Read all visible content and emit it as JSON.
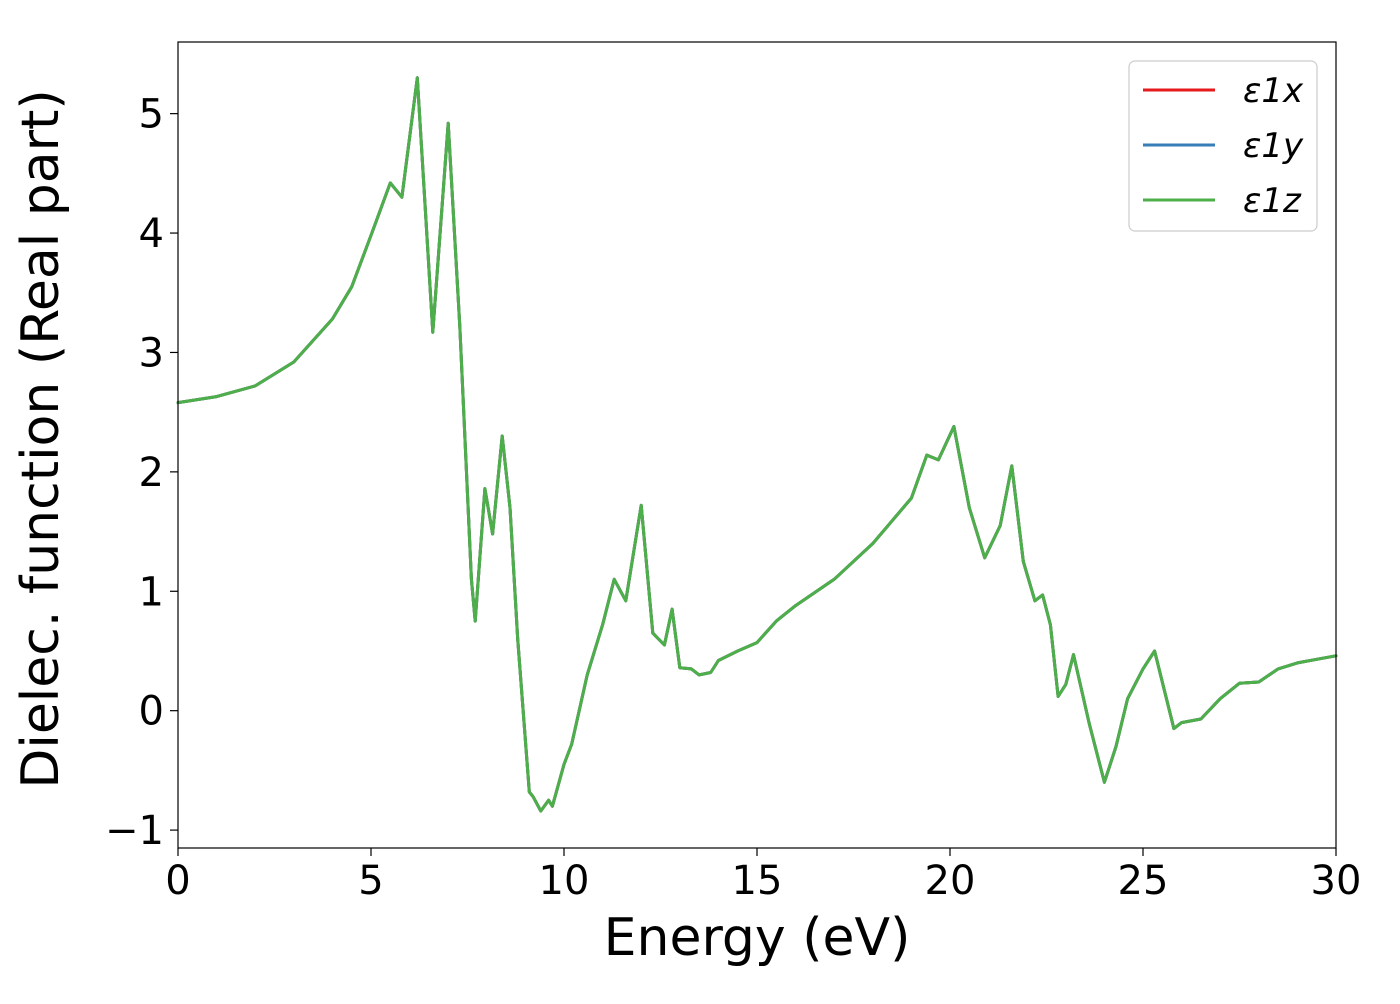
{
  "chart_data": {
    "type": "line",
    "xlabel": "Energy (eV)",
    "ylabel": "Dielec. function (Real part)",
    "xlim": [
      0,
      30
    ],
    "ylim": [
      -1.15,
      5.6
    ],
    "xticks": [
      0,
      5,
      10,
      15,
      20,
      25,
      30
    ],
    "yticks": [
      -1,
      0,
      1,
      2,
      3,
      4,
      5
    ],
    "xtick_labels": [
      "0",
      "5",
      "10",
      "15",
      "20",
      "25",
      "30"
    ],
    "ytick_labels": [
      "−1",
      "0",
      "1",
      "2",
      "3",
      "4",
      "5"
    ],
    "grid": false,
    "legend_position": "top-right",
    "series": [
      {
        "name": "ε1x",
        "color": "#e41a1c",
        "x": [
          0,
          1,
          2,
          3,
          4,
          4.5,
          5,
          5.5,
          5.8,
          6.2,
          6.6,
          7.0,
          7.3,
          7.6,
          7.7,
          7.95,
          8.15,
          8.4,
          8.6,
          8.8,
          9.1,
          9.2,
          9.4,
          9.6,
          9.7,
          10.0,
          10.2,
          10.6,
          11.0,
          11.3,
          11.6,
          12.0,
          12.3,
          12.6,
          12.8,
          13.0,
          13.3,
          13.5,
          13.8,
          14.0,
          14.5,
          15.0,
          15.5,
          16.0,
          17.0,
          18.0,
          19.0,
          19.4,
          19.7,
          20.1,
          20.5,
          20.9,
          21.3,
          21.6,
          21.9,
          22.2,
          22.4,
          22.6,
          22.8,
          23.0,
          23.2,
          23.6,
          24.0,
          24.3,
          24.6,
          25.0,
          25.3,
          25.8,
          26.0,
          26.5,
          27.0,
          27.5,
          28.0,
          28.5,
          29.0,
          29.5,
          30.0
        ],
        "y": [
          2.58,
          2.63,
          2.72,
          2.92,
          3.28,
          3.55,
          3.98,
          4.42,
          4.3,
          5.3,
          3.17,
          4.92,
          3.22,
          1.1,
          0.75,
          1.86,
          1.48,
          2.3,
          1.7,
          0.6,
          -0.68,
          -0.72,
          -0.84,
          -0.75,
          -0.8,
          -0.45,
          -0.28,
          0.3,
          0.72,
          1.1,
          0.92,
          1.72,
          0.65,
          0.55,
          0.85,
          0.36,
          0.35,
          0.3,
          0.32,
          0.42,
          0.5,
          0.57,
          0.75,
          0.88,
          1.1,
          1.4,
          1.78,
          2.14,
          2.1,
          2.38,
          1.7,
          1.28,
          1.55,
          2.05,
          1.25,
          0.92,
          0.97,
          0.72,
          0.12,
          0.22,
          0.47,
          -0.1,
          -0.6,
          -0.3,
          0.1,
          0.35,
          0.5,
          -0.15,
          -0.1,
          -0.07,
          0.1,
          0.23,
          0.24,
          0.35,
          0.4,
          0.43,
          0.46
        ]
      },
      {
        "name": "ε1y",
        "color": "#377eb8",
        "x": [
          0,
          1,
          2,
          3,
          4,
          4.5,
          5,
          5.5,
          5.8,
          6.2,
          6.6,
          7.0,
          7.3,
          7.6,
          7.7,
          7.95,
          8.15,
          8.4,
          8.6,
          8.8,
          9.1,
          9.2,
          9.4,
          9.6,
          9.7,
          10.0,
          10.2,
          10.6,
          11.0,
          11.3,
          11.6,
          12.0,
          12.3,
          12.6,
          12.8,
          13.0,
          13.3,
          13.5,
          13.8,
          14.0,
          14.5,
          15.0,
          15.5,
          16.0,
          17.0,
          18.0,
          19.0,
          19.4,
          19.7,
          20.1,
          20.5,
          20.9,
          21.3,
          21.6,
          21.9,
          22.2,
          22.4,
          22.6,
          22.8,
          23.0,
          23.2,
          23.6,
          24.0,
          24.3,
          24.6,
          25.0,
          25.3,
          25.8,
          26.0,
          26.5,
          27.0,
          27.5,
          28.0,
          28.5,
          29.0,
          29.5,
          30.0
        ],
        "y": [
          2.58,
          2.63,
          2.72,
          2.92,
          3.28,
          3.55,
          3.98,
          4.42,
          4.3,
          5.3,
          3.17,
          4.92,
          3.22,
          1.1,
          0.75,
          1.86,
          1.48,
          2.3,
          1.7,
          0.6,
          -0.68,
          -0.72,
          -0.84,
          -0.75,
          -0.8,
          -0.45,
          -0.28,
          0.3,
          0.72,
          1.1,
          0.92,
          1.72,
          0.65,
          0.55,
          0.85,
          0.36,
          0.35,
          0.3,
          0.32,
          0.42,
          0.5,
          0.57,
          0.75,
          0.88,
          1.1,
          1.4,
          1.78,
          2.14,
          2.1,
          2.38,
          1.7,
          1.28,
          1.55,
          2.05,
          1.25,
          0.92,
          0.97,
          0.72,
          0.12,
          0.22,
          0.47,
          -0.1,
          -0.6,
          -0.3,
          0.1,
          0.35,
          0.5,
          -0.15,
          -0.1,
          -0.07,
          0.1,
          0.23,
          0.24,
          0.35,
          0.4,
          0.43,
          0.46
        ]
      },
      {
        "name": "ε1z",
        "color": "#4daf4a",
        "x": [
          0,
          1,
          2,
          3,
          4,
          4.5,
          5,
          5.5,
          5.8,
          6.2,
          6.6,
          7.0,
          7.3,
          7.6,
          7.7,
          7.95,
          8.15,
          8.4,
          8.6,
          8.8,
          9.1,
          9.2,
          9.4,
          9.6,
          9.7,
          10.0,
          10.2,
          10.6,
          11.0,
          11.3,
          11.6,
          12.0,
          12.3,
          12.6,
          12.8,
          13.0,
          13.3,
          13.5,
          13.8,
          14.0,
          14.5,
          15.0,
          15.5,
          16.0,
          17.0,
          18.0,
          19.0,
          19.4,
          19.7,
          20.1,
          20.5,
          20.9,
          21.3,
          21.6,
          21.9,
          22.2,
          22.4,
          22.6,
          22.8,
          23.0,
          23.2,
          23.6,
          24.0,
          24.3,
          24.6,
          25.0,
          25.3,
          25.8,
          26.0,
          26.5,
          27.0,
          27.5,
          28.0,
          28.5,
          29.0,
          29.5,
          30.0
        ],
        "y": [
          2.58,
          2.63,
          2.72,
          2.92,
          3.28,
          3.55,
          3.98,
          4.42,
          4.3,
          5.3,
          3.17,
          4.92,
          3.22,
          1.1,
          0.75,
          1.86,
          1.48,
          2.3,
          1.7,
          0.6,
          -0.68,
          -0.72,
          -0.84,
          -0.75,
          -0.8,
          -0.45,
          -0.28,
          0.3,
          0.72,
          1.1,
          0.92,
          1.72,
          0.65,
          0.55,
          0.85,
          0.36,
          0.35,
          0.3,
          0.32,
          0.42,
          0.5,
          0.57,
          0.75,
          0.88,
          1.1,
          1.4,
          1.78,
          2.14,
          2.1,
          2.38,
          1.7,
          1.28,
          1.55,
          2.05,
          1.25,
          0.92,
          0.97,
          0.72,
          0.12,
          0.22,
          0.47,
          -0.1,
          -0.6,
          -0.3,
          0.1,
          0.35,
          0.5,
          -0.15,
          -0.1,
          -0.07,
          0.1,
          0.23,
          0.24,
          0.35,
          0.4,
          0.43,
          0.46
        ]
      }
    ]
  }
}
